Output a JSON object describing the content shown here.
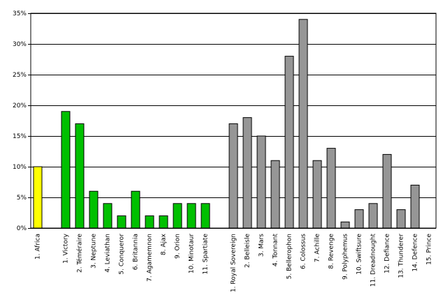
{
  "chart_data": {
    "type": "bar",
    "categories": [
      "1. Africa",
      null,
      "1. Victory",
      "2. Téméraire",
      "3. Neptune",
      "4. Leviathan",
      "5. Conqueror",
      "6. Britannia",
      "7. Agamemnon",
      "8. Ajax",
      "9. Orion",
      "10. Minotaur",
      "11. Spartiate",
      null,
      "1. Royal Sovereign",
      "2. Belleisle",
      "3. Mars",
      "4. Tonnant",
      "5. Bellerophon",
      "6. Colossus",
      "7. Achille",
      "8. Revenge",
      "9. Polyphemus",
      "10. Swiftsure",
      "11. Dreadnought",
      "12. Defiance",
      "13. Thunderer",
      "14. Defence",
      "15. Prince"
    ],
    "values": [
      10,
      null,
      19,
      17,
      6,
      4,
      2,
      6,
      2,
      2,
      4,
      4,
      4,
      null,
      17,
      18,
      15,
      11,
      28,
      34,
      11,
      13,
      1,
      3,
      4,
      12,
      3,
      7,
      0
    ],
    "colors": [
      "#ffff00",
      null,
      "#00c000",
      "#00c000",
      "#00c000",
      "#00c000",
      "#00c000",
      "#00c000",
      "#00c000",
      "#00c000",
      "#00c000",
      "#00c000",
      "#00c000",
      null,
      "#969696",
      "#969696",
      "#969696",
      "#969696",
      "#969696",
      "#969696",
      "#969696",
      "#969696",
      "#969696",
      "#969696",
      "#969696",
      "#969696",
      "#969696",
      "#969696",
      "#969696"
    ],
    "ylim": [
      0,
      35
    ],
    "yticks": [
      {
        "value": 0,
        "label": "0%"
      },
      {
        "value": 5,
        "label": "5%"
      },
      {
        "value": 10,
        "label": "10%"
      },
      {
        "value": 15,
        "label": "15%"
      },
      {
        "value": 20,
        "label": "20%"
      },
      {
        "value": 25,
        "label": "25%"
      },
      {
        "value": 30,
        "label": "30%"
      },
      {
        "value": 35,
        "label": "35%"
      }
    ],
    "grid": true
  }
}
